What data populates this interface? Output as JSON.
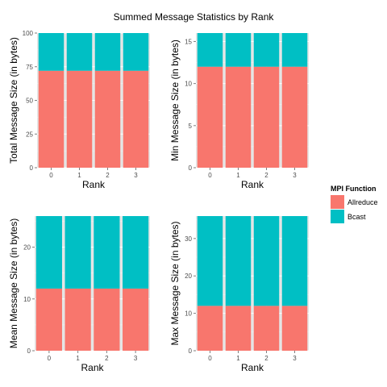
{
  "title": "Summed Message Statistics by Rank",
  "colors": {
    "panel_background": "#e5e5e5",
    "grid_major": "#ffffff",
    "grid_minor": "#f2f2f2",
    "tick_text": "#4d4d4d",
    "Allreduce": "#f8766d",
    "Bcast": "#00bfc4"
  },
  "legend": {
    "title": "MPI Function",
    "position": "right",
    "items": [
      {
        "label": "Allreduce",
        "color": "#f8766d"
      },
      {
        "label": "Bcast",
        "color": "#00bfc4"
      }
    ]
  },
  "chart_data": [
    {
      "type": "bar",
      "stacked": true,
      "grid": true,
      "xlabel": "Rank",
      "ylabel": "Total Message Size (in bytes)",
      "categories": [
        "0",
        "1",
        "2",
        "3"
      ],
      "ylim": [
        0,
        100
      ],
      "yticks": [
        0,
        25,
        50,
        75,
        100
      ],
      "series": [
        {
          "name": "Allreduce",
          "values": [
            72,
            72,
            72,
            72
          ]
        },
        {
          "name": "Bcast",
          "values": [
            28,
            28,
            28,
            28
          ]
        }
      ]
    },
    {
      "type": "bar",
      "stacked": true,
      "grid": true,
      "xlabel": "Rank",
      "ylabel": "Min Message Size (in bytes)",
      "categories": [
        "0",
        "1",
        "2",
        "3"
      ],
      "ylim": [
        0,
        16
      ],
      "yticks": [
        0,
        5,
        10,
        15
      ],
      "series": [
        {
          "name": "Allreduce",
          "values": [
            12,
            12,
            12,
            12
          ]
        },
        {
          "name": "Bcast",
          "values": [
            4,
            4,
            4,
            4
          ]
        }
      ]
    },
    {
      "type": "bar",
      "stacked": true,
      "grid": true,
      "xlabel": "Rank",
      "ylabel": "Mean Message Size (in bytes)",
      "categories": [
        "0",
        "1",
        "2",
        "3"
      ],
      "ylim": [
        0,
        26
      ],
      "yticks": [
        0,
        10,
        20
      ],
      "series": [
        {
          "name": "Allreduce",
          "values": [
            12,
            12,
            12,
            12
          ]
        },
        {
          "name": "Bcast",
          "values": [
            14,
            14,
            14,
            14
          ]
        }
      ]
    },
    {
      "type": "bar",
      "stacked": true,
      "grid": true,
      "xlabel": "Rank",
      "ylabel": "Max Message Size (in bytes)",
      "categories": [
        "0",
        "1",
        "2",
        "3"
      ],
      "ylim": [
        0,
        36
      ],
      "yticks": [
        0,
        10,
        20,
        30
      ],
      "series": [
        {
          "name": "Allreduce",
          "values": [
            12,
            12,
            12,
            12
          ]
        },
        {
          "name": "Bcast",
          "values": [
            24,
            24,
            24,
            24
          ]
        }
      ]
    }
  ]
}
